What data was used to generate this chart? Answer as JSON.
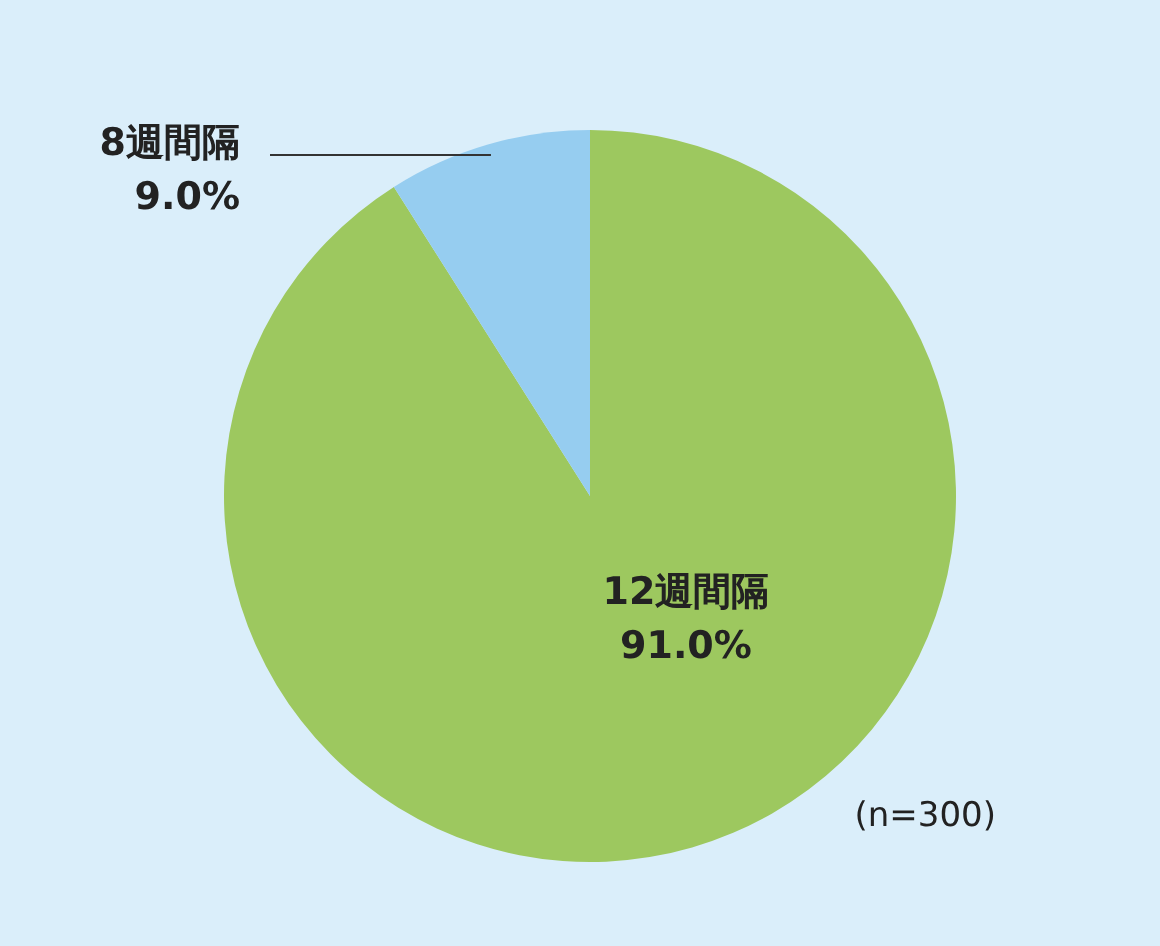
{
  "chart_data": {
    "type": "pie",
    "categories": [
      "12週間隔",
      "8週間隔"
    ],
    "values": [
      91.0,
      9.0
    ],
    "colors": [
      "#9dc85f",
      "#96cdf0"
    ],
    "value_labels": [
      "91.0%",
      "9.0%"
    ],
    "legend": false,
    "annotations": [
      "(n=300)"
    ]
  }
}
